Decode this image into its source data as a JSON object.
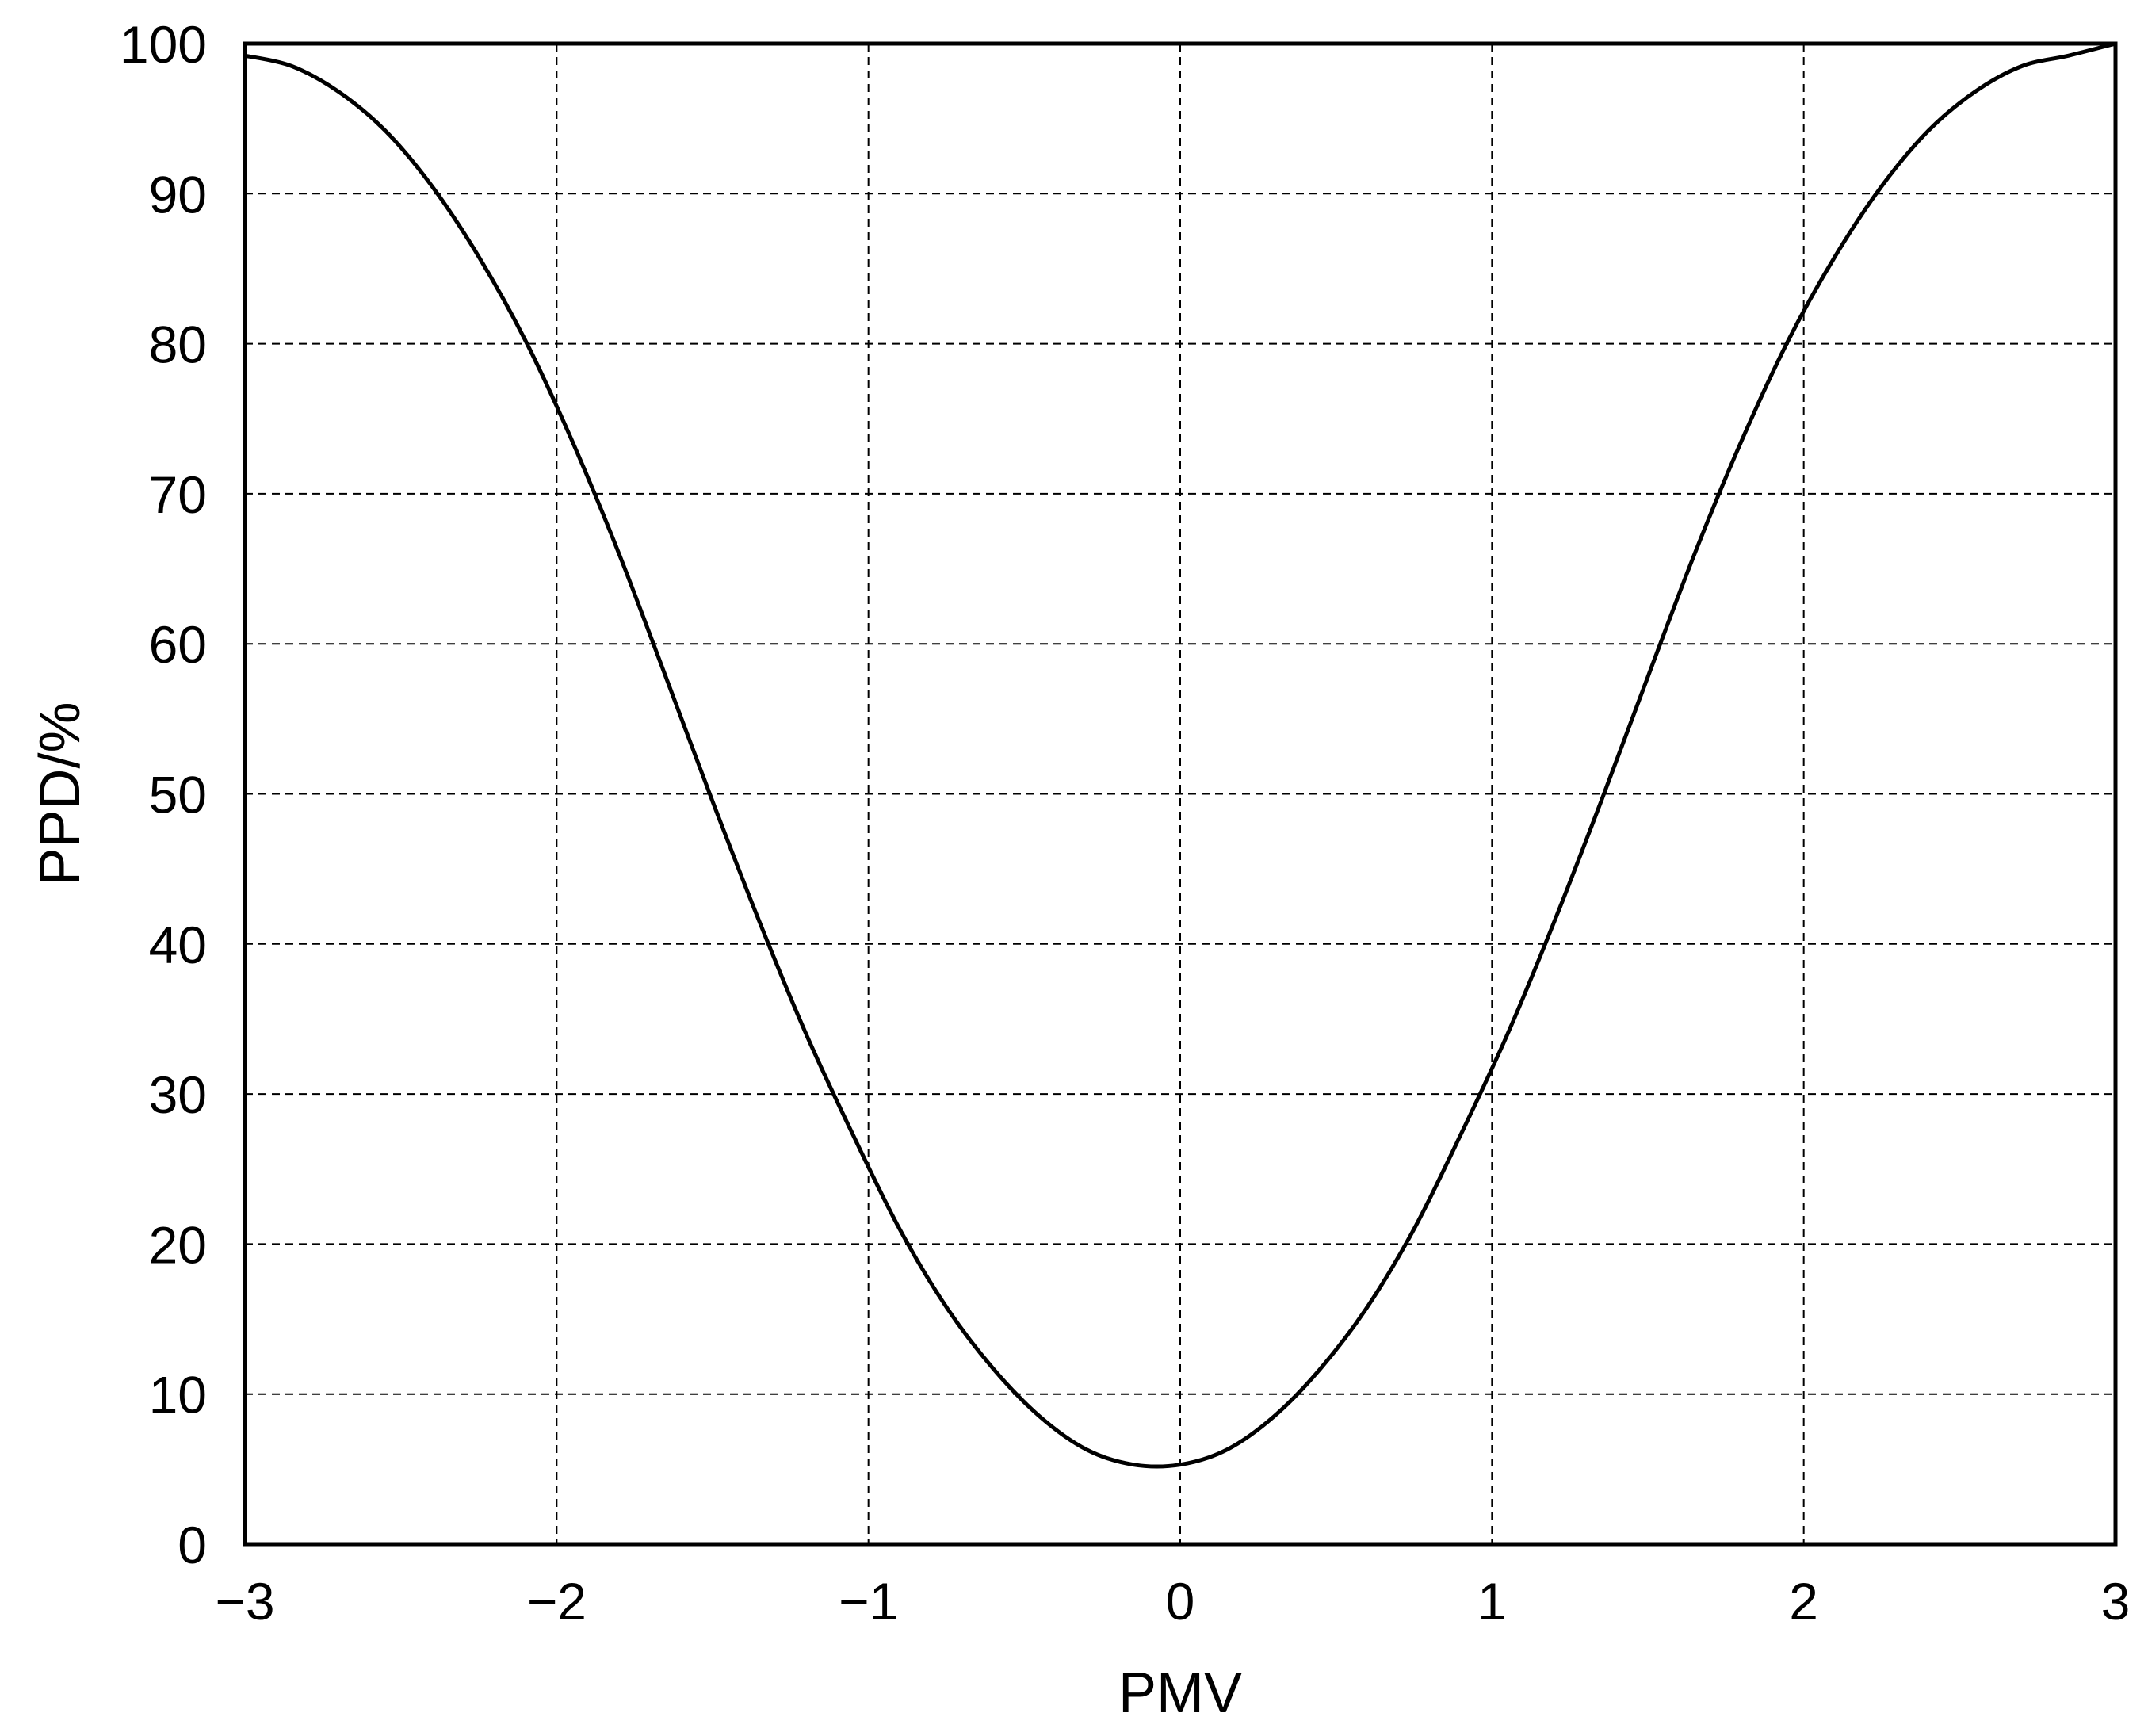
{
  "chart_data": {
    "type": "line",
    "title": "",
    "xlabel": "PMV",
    "ylabel": "PPD/%",
    "xlim": [
      -3,
      3
    ],
    "ylim": [
      0,
      100
    ],
    "x_ticks": [
      -3,
      -2,
      -1,
      0,
      1,
      2,
      3
    ],
    "x_tick_labels": [
      "−3",
      "−2",
      "−1",
      "0",
      "1",
      "2",
      "3"
    ],
    "y_ticks": [
      0,
      10,
      20,
      30,
      40,
      50,
      60,
      70,
      80,
      90,
      100
    ],
    "y_tick_labels": [
      "0",
      "10",
      "20",
      "30",
      "40",
      "50",
      "60",
      "70",
      "80",
      "90",
      "100"
    ],
    "grid": true,
    "series": [
      {
        "x": [
          -3.0,
          -2.85,
          -2.7,
          -2.55,
          -2.4,
          -2.25,
          -2.1,
          -1.95,
          -1.8,
          -1.65,
          -1.5,
          -1.35,
          -1.2,
          -1.05,
          -0.9,
          -0.75,
          -0.6,
          -0.45,
          -0.3,
          -0.15,
          0.0,
          0.15,
          0.3,
          0.45,
          0.6,
          0.75,
          0.9,
          1.05,
          1.2,
          1.35,
          1.5,
          1.65,
          1.8,
          1.95,
          2.1,
          2.25,
          2.4,
          2.55,
          2.7,
          2.85,
          3.0
        ],
        "y": [
          99.2,
          98.5,
          96.8,
          94.2,
          90.5,
          85.8,
          80.2,
          73.5,
          66.0,
          57.8,
          49.5,
          41.5,
          34.0,
          27.3,
          21.0,
          15.8,
          11.7,
          8.5,
          6.3,
          5.3,
          5.3,
          6.3,
          8.5,
          11.7,
          15.8,
          21.0,
          27.3,
          34.0,
          41.5,
          49.5,
          57.8,
          66.0,
          73.5,
          80.2,
          85.8,
          90.5,
          94.2,
          96.8,
          98.5,
          99.2,
          100.0
        ],
        "color": "#000000"
      }
    ]
  }
}
